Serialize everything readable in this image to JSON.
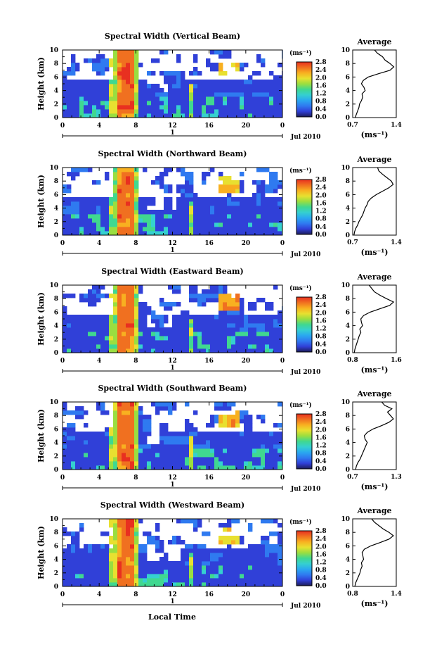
{
  "figure": {
    "x_label": "Local Time",
    "y_label": "Height (km)",
    "x_ticks": [
      "0",
      "4",
      "8",
      "12",
      "16",
      "20",
      "0"
    ],
    "y_ticks": [
      "0",
      "2",
      "4",
      "6",
      "8",
      "10"
    ],
    "day_tick": "1",
    "date_label": "Jul 2010",
    "colorbar_unit": "(ms⁻¹)",
    "colorbar_ticks": [
      "0.0",
      "0.4",
      "0.8",
      "1.2",
      "1.6",
      "2.0",
      "2.4",
      "2.8"
    ],
    "profile_title": "Average",
    "profile_unit": "(ms⁻¹)",
    "colors": {
      "scale": [
        "#1c1c5a",
        "#3040d8",
        "#2f7af0",
        "#2aa8f0",
        "#35d0d0",
        "#40d890",
        "#9ade40",
        "#e8e030",
        "#f8b020",
        "#f07020",
        "#e83020"
      ],
      "background": "#ffffff"
    }
  },
  "chart_data": [
    {
      "type": "heatmap",
      "title": "Spectral Width (Vertical Beam)",
      "xlabel": "Local Time",
      "ylabel": "Height (km)",
      "xlim": [
        0,
        24
      ],
      "ylim": [
        0,
        10
      ],
      "colorbar": {
        "unit": "ms⁻¹",
        "range": [
          0.0,
          2.8
        ]
      },
      "profile": {
        "title": "Average",
        "xlim": [
          0.7,
          1.4
        ],
        "x_ticks": [
          "0.7",
          "1.4"
        ],
        "heights": [
          0,
          0.5,
          1,
          1.5,
          2,
          2.5,
          3,
          3.5,
          4,
          4.5,
          5,
          5.5,
          6,
          6.5,
          7,
          7.5,
          8,
          8.5,
          9,
          9.5,
          10
        ],
        "values": [
          0.74,
          0.76,
          0.78,
          0.8,
          0.81,
          0.84,
          0.86,
          0.85,
          0.9,
          0.88,
          0.84,
          0.87,
          0.95,
          1.12,
          1.3,
          1.36,
          1.3,
          1.22,
          1.18,
          1.1,
          1.05
        ]
      }
    },
    {
      "type": "heatmap",
      "title": "Spectral Width (Northward Beam)",
      "xlabel": "Local Time",
      "ylabel": "Height (km)",
      "xlim": [
        0,
        24
      ],
      "ylim": [
        0,
        10
      ],
      "colorbar": {
        "unit": "ms⁻¹",
        "range": [
          0.0,
          2.8
        ]
      },
      "profile": {
        "title": "Average",
        "xlim": [
          0.7,
          1.4
        ],
        "x_ticks": [
          "0.7",
          "1.4"
        ],
        "heights": [
          0,
          0.5,
          1,
          1.5,
          2,
          2.5,
          3,
          3.5,
          4,
          4.5,
          5,
          5.5,
          6,
          6.5,
          7,
          7.5,
          8,
          8.5,
          9,
          9.5,
          10
        ],
        "values": [
          0.72,
          0.73,
          0.75,
          0.78,
          0.8,
          0.83,
          0.86,
          0.88,
          0.9,
          0.93,
          0.95,
          1.0,
          1.08,
          1.18,
          1.28,
          1.35,
          1.32,
          1.25,
          1.18,
          1.12,
          1.1
        ]
      }
    },
    {
      "type": "heatmap",
      "title": "Spectral Width (Eastward Beam)",
      "xlabel": "Local Time",
      "ylabel": "Height (km)",
      "xlim": [
        0,
        24
      ],
      "ylim": [
        0,
        10
      ],
      "colorbar": {
        "unit": "ms⁻¹",
        "range": [
          0.0,
          2.8
        ]
      },
      "profile": {
        "title": "Average",
        "xlim": [
          0.8,
          1.6
        ],
        "x_ticks": [
          "0.8",
          "1.6"
        ],
        "heights": [
          0,
          0.5,
          1,
          1.5,
          2,
          2.5,
          3,
          3.5,
          4,
          4.5,
          5,
          5.5,
          6,
          6.5,
          7,
          7.5,
          8,
          8.5,
          9,
          9.5,
          10
        ],
        "values": [
          0.83,
          0.84,
          0.86,
          0.88,
          0.9,
          0.92,
          0.95,
          0.93,
          0.98,
          0.96,
          0.95,
          1.0,
          1.12,
          1.3,
          1.48,
          1.55,
          1.42,
          1.3,
          1.2,
          1.15,
          1.1
        ]
      }
    },
    {
      "type": "heatmap",
      "title": "Spectral Width (Southward Beam)",
      "xlabel": "Local Time",
      "ylabel": "Height (km)",
      "xlim": [
        0,
        24
      ],
      "ylim": [
        0,
        10
      ],
      "colorbar": {
        "unit": "ms⁻¹",
        "range": [
          0.0,
          2.8
        ]
      },
      "profile": {
        "title": "Average",
        "xlim": [
          0.7,
          1.3
        ],
        "x_ticks": [
          "0.7",
          "1.3"
        ],
        "heights": [
          0,
          0.5,
          1,
          1.5,
          2,
          2.5,
          3,
          3.5,
          4,
          4.5,
          5,
          5.5,
          6,
          6.5,
          7,
          7.5,
          8,
          8.5,
          9,
          9.5,
          10
        ],
        "values": [
          0.74,
          0.75,
          0.77,
          0.8,
          0.82,
          0.84,
          0.86,
          0.88,
          0.9,
          0.87,
          0.86,
          0.9,
          0.98,
          1.1,
          1.2,
          1.26,
          1.22,
          1.18,
          1.24,
          1.14,
          1.1
        ]
      }
    },
    {
      "type": "heatmap",
      "title": "Spectral Width (Westward Beam)",
      "xlabel": "Local Time",
      "ylabel": "Height (km)",
      "xlim": [
        0,
        24
      ],
      "ylim": [
        0,
        10
      ],
      "colorbar": {
        "unit": "ms⁻¹",
        "range": [
          0.0,
          2.8
        ]
      },
      "profile": {
        "title": "Average",
        "xlim": [
          0.8,
          1.4
        ],
        "x_ticks": [
          "0.8",
          "1.4"
        ],
        "heights": [
          0,
          0.5,
          1,
          1.5,
          2,
          2.5,
          3,
          3.5,
          4,
          4.5,
          5,
          5.5,
          6,
          6.5,
          7,
          7.5,
          8,
          8.5,
          9,
          9.5,
          10
        ],
        "values": [
          0.83,
          0.84,
          0.86,
          0.88,
          0.9,
          0.91,
          0.93,
          0.92,
          0.95,
          0.94,
          0.93,
          0.96,
          1.05,
          1.18,
          1.3,
          1.36,
          1.3,
          1.22,
          1.16,
          1.1,
          1.06
        ]
      }
    }
  ]
}
